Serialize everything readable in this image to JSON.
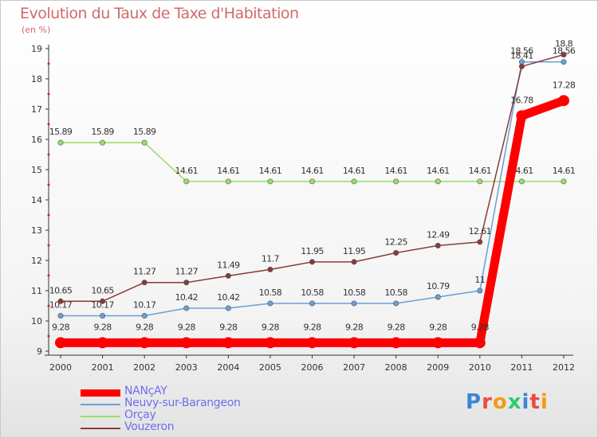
{
  "title": "Evolution du Taux de Taxe d'Habitation",
  "subtitle": "(en %)",
  "logo": {
    "text": "Proxiti",
    "colors": [
      "#3b86d6",
      "#e84c3d",
      "#f39c12",
      "#2ecc71",
      "#3b86d6",
      "#e84c3d",
      "#f39c12"
    ]
  },
  "chart_data": {
    "type": "line",
    "title": "Evolution du Taux de Taxe d'Habitation",
    "subtitle": "(en %)",
    "x": [
      "2000",
      "2001",
      "2002",
      "2003",
      "2004",
      "2005",
      "2006",
      "2007",
      "2008",
      "2009",
      "2010",
      "2011",
      "2012"
    ],
    "ylim": [
      9,
      19
    ],
    "yticks": [
      "9",
      "10",
      "11",
      "12",
      "13",
      "14",
      "15",
      "16",
      "17",
      "18",
      "19"
    ],
    "grid": false,
    "legend_position": "bottom-left",
    "series": [
      {
        "name": "NANçAY",
        "color": "#ff0000",
        "values": [
          9.28,
          9.28,
          9.28,
          9.28,
          9.28,
          9.28,
          9.28,
          9.28,
          9.28,
          9.28,
          9.28,
          16.78,
          17.28
        ],
        "labels": [
          "9.28",
          "9.28",
          "9.28",
          "9.28",
          "9.28",
          "9.28",
          "9.28",
          "9.28",
          "9.28",
          "9.28",
          "9.28",
          "16.78",
          "17.28"
        ]
      },
      {
        "name": "Neuvy-sur-Barangeon",
        "color": "#6a9fd4",
        "values": [
          10.17,
          10.17,
          10.17,
          10.42,
          10.42,
          10.58,
          10.58,
          10.58,
          10.58,
          10.79,
          11,
          18.56,
          18.56
        ],
        "labels": [
          "10.17",
          "10.17",
          "10.17",
          "10.42",
          "10.42",
          "10.58",
          "10.58",
          "10.58",
          "10.58",
          "10.79",
          "11",
          "18.56",
          "18.56"
        ]
      },
      {
        "name": "Orçay",
        "color": "#99dd66",
        "values": [
          15.89,
          15.89,
          15.89,
          14.61,
          14.61,
          14.61,
          14.61,
          14.61,
          14.61,
          14.61,
          14.61,
          14.61,
          14.61
        ],
        "labels": [
          "15.89",
          "15.89",
          "15.89",
          "14.61",
          "14.61",
          "14.61",
          "14.61",
          "14.61",
          "14.61",
          "14.61",
          "14.61",
          "14.61",
          "14.61"
        ]
      },
      {
        "name": "Vouzeron",
        "color": "#8b3a3a",
        "values": [
          10.65,
          10.65,
          11.27,
          11.27,
          11.49,
          11.7,
          11.95,
          11.95,
          12.25,
          12.49,
          12.61,
          18.41,
          18.8
        ],
        "labels": [
          "10.65",
          "10.65",
          "11.27",
          "11.27",
          "11.49",
          "11.7",
          "11.95",
          "11.95",
          "12.25",
          "12.49",
          "12.61",
          "18.41",
          "18.8"
        ]
      }
    ]
  }
}
